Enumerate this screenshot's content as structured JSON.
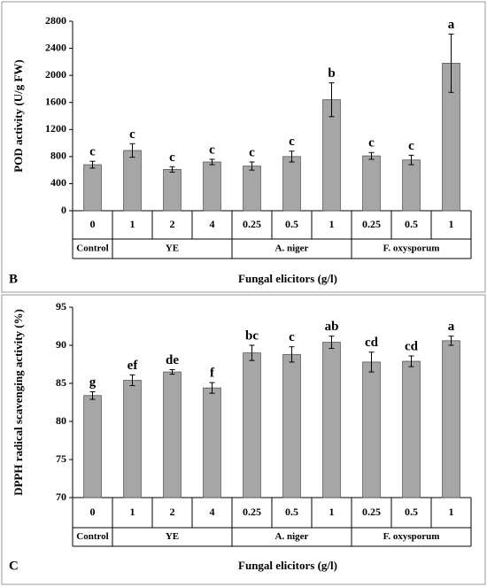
{
  "chart_data": [
    {
      "type": "bar",
      "panel": "B",
      "y_label": "POD activity (U/g FW)",
      "x_label": "Fungal elicitors (g/l)",
      "categories": [
        "0",
        "1",
        "2",
        "4",
        "0.25",
        "0.5",
        "1",
        "0.25",
        "0.5",
        "1"
      ],
      "groups": [
        {
          "name": "Control",
          "count": 1
        },
        {
          "name": "YE",
          "count": 3
        },
        {
          "name": "A. niger",
          "count": 3
        },
        {
          "name": "F. oxysporum",
          "count": 3
        }
      ],
      "values": [
        680,
        890,
        610,
        720,
        660,
        800,
        1640,
        810,
        750,
        2180
      ],
      "errors": [
        50,
        100,
        40,
        40,
        60,
        80,
        250,
        50,
        70,
        430
      ],
      "annotations": [
        "c",
        "c",
        "c",
        "c",
        "c",
        "c",
        "b",
        "c",
        "c",
        "a"
      ],
      "color": "#a6a6a6",
      "ylim": [
        0,
        2800
      ],
      "yticks": [
        0,
        400,
        800,
        1200,
        1600,
        2000,
        2400,
        2800
      ]
    },
    {
      "type": "bar",
      "panel": "C",
      "y_label": "DPPH radical scavenging activity  (%)",
      "x_label": "Fungal elicitors (g/l)",
      "categories": [
        "0",
        "1",
        "2",
        "4",
        "0.25",
        "0.5",
        "1",
        "0.25",
        "0.5",
        "1"
      ],
      "groups": [
        {
          "name": "Control",
          "count": 1
        },
        {
          "name": "YE",
          "count": 3
        },
        {
          "name": "A. niger",
          "count": 3
        },
        {
          "name": "F. oxysporum",
          "count": 3
        }
      ],
      "values": [
        83.4,
        85.4,
        86.5,
        84.4,
        89.0,
        88.8,
        90.4,
        87.8,
        87.9,
        90.6
      ],
      "errors": [
        0.5,
        0.7,
        0.3,
        0.7,
        1.0,
        1.0,
        0.8,
        1.3,
        0.7,
        0.6
      ],
      "annotations": [
        "g",
        "ef",
        "de",
        "f",
        "bc",
        "c",
        "ab",
        "cd",
        "cd",
        "a"
      ],
      "color": "#a6a6a6",
      "ylim": [
        70,
        95
      ],
      "yticks": [
        70,
        75,
        80,
        85,
        90,
        95
      ]
    }
  ]
}
